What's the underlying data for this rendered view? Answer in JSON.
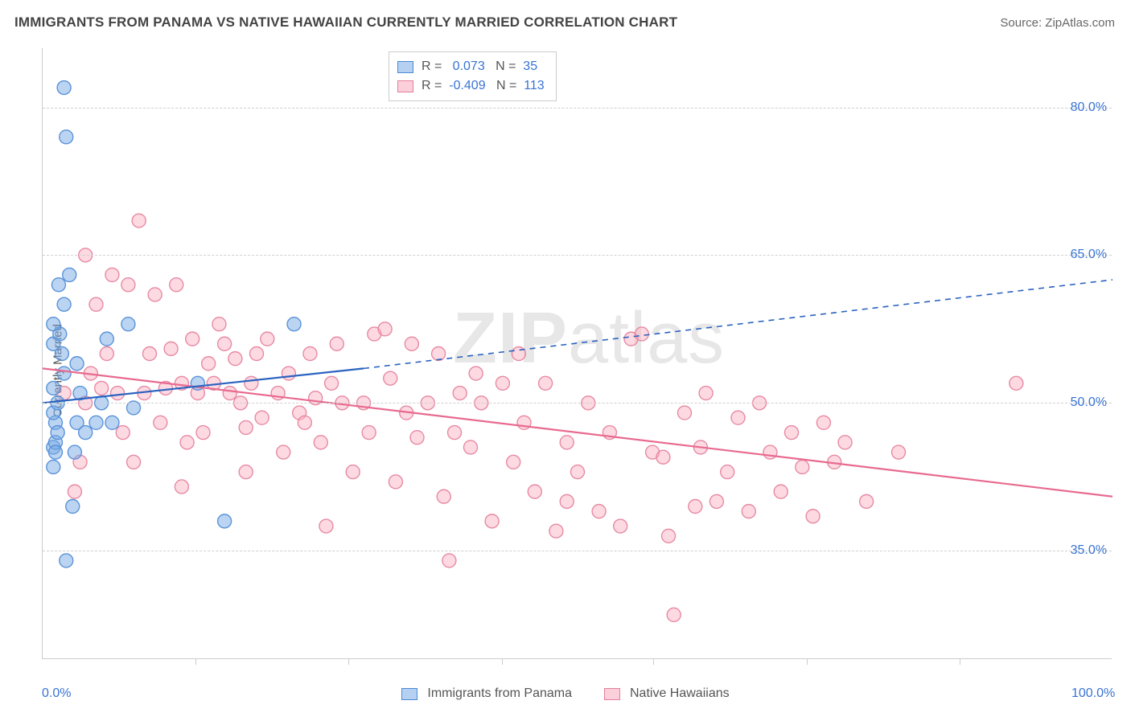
{
  "header": {
    "title": "IMMIGRANTS FROM PANAMA VS NATIVE HAWAIIAN CURRENTLY MARRIED CORRELATION CHART",
    "source_label": "Source: ",
    "source_value": "ZipAtlas.com"
  },
  "watermark": {
    "bold": "ZIP",
    "rest": "atlas"
  },
  "axes": {
    "y_label": "Currently Married",
    "x_min": 0,
    "x_max": 100,
    "y_min": 24,
    "y_max": 86,
    "x_ticks": [
      0,
      100
    ],
    "x_tick_labels": [
      "0.0%",
      "100.0%"
    ],
    "x_minor_ticks": [
      14.3,
      28.6,
      42.9,
      57.1,
      71.4,
      85.7
    ],
    "y_grid": [
      35,
      50,
      65,
      80
    ],
    "y_grid_labels": [
      "35.0%",
      "50.0%",
      "65.0%",
      "80.0%"
    ]
  },
  "colors": {
    "blue_fill": "rgba(120,170,230,0.5)",
    "blue_stroke": "#5a93d8",
    "blue_line": "#2a63c0",
    "pink_fill": "rgba(250,170,190,0.45)",
    "pink_stroke": "#e78aa3",
    "pink_line": "#e86a8f",
    "axis_tick_text": "#3973d4",
    "grid": "#d0d0d0"
  },
  "chart": {
    "type": "scatter",
    "marker_radius": 8.5,
    "marker_stroke_width": 1.4,
    "trend_line_width": 2.2
  },
  "stats_box": {
    "rows": [
      {
        "series": "blue",
        "r_label": "R =",
        "r_value": "0.073",
        "n_label": "N =",
        "n_value": "35"
      },
      {
        "series": "pink",
        "r_label": "R =",
        "r_value": "-0.409",
        "n_label": "N =",
        "n_value": "113"
      }
    ]
  },
  "legend": {
    "items": [
      {
        "series": "blue",
        "label": "Immigrants from Panama"
      },
      {
        "series": "pink",
        "label": "Native Hawaiians"
      }
    ]
  },
  "trend_lines": {
    "blue": {
      "x1": 0,
      "y1": 50.0,
      "x_solid_end": 30,
      "y_solid_end": 53.5,
      "x2": 100,
      "y2": 62.5,
      "dashed_from_solid_end": true
    },
    "pink": {
      "x1": 0,
      "y1": 53.5,
      "x2": 100,
      "y2": 40.5
    }
  },
  "series": {
    "blue": [
      [
        1.0,
        45.5
      ],
      [
        1.2,
        46.0
      ],
      [
        1.2,
        48.0
      ],
      [
        1.0,
        49.0
      ],
      [
        1.4,
        50.0
      ],
      [
        1.0,
        51.5
      ],
      [
        2.0,
        53.0
      ],
      [
        1.8,
        55.0
      ],
      [
        1.0,
        56.0
      ],
      [
        1.6,
        57.0
      ],
      [
        1.0,
        58.0
      ],
      [
        2.0,
        60.0
      ],
      [
        1.5,
        62.0
      ],
      [
        2.5,
        63.0
      ],
      [
        2.0,
        82.0
      ],
      [
        2.2,
        77.0
      ],
      [
        2.8,
        39.5
      ],
      [
        2.2,
        34.0
      ],
      [
        3.0,
        45.0
      ],
      [
        3.2,
        48.0
      ],
      [
        3.5,
        51.0
      ],
      [
        4.0,
        47.0
      ],
      [
        5.0,
        48.0
      ],
      [
        5.5,
        50.0
      ],
      [
        6.0,
        56.5
      ],
      [
        6.5,
        48.0
      ],
      [
        8.0,
        58.0
      ],
      [
        8.5,
        49.5
      ],
      [
        3.2,
        54.0
      ],
      [
        1.0,
        43.5
      ],
      [
        14.5,
        52.0
      ],
      [
        23.5,
        58.0
      ],
      [
        17.0,
        38.0
      ],
      [
        1.2,
        45.0
      ],
      [
        1.4,
        47.0
      ]
    ],
    "pink": [
      [
        2.0,
        51.0
      ],
      [
        3.5,
        44.0
      ],
      [
        4.0,
        65.0
      ],
      [
        4.5,
        53.0
      ],
      [
        5.0,
        60.0
      ],
      [
        5.5,
        51.5
      ],
      [
        6.0,
        55.0
      ],
      [
        6.5,
        63.0
      ],
      [
        7.0,
        51.0
      ],
      [
        7.5,
        47.0
      ],
      [
        8.0,
        62.0
      ],
      [
        8.5,
        44.0
      ],
      [
        9.0,
        68.5
      ],
      [
        9.5,
        51.0
      ],
      [
        10.0,
        55.0
      ],
      [
        10.5,
        61.0
      ],
      [
        11.0,
        48.0
      ],
      [
        11.5,
        51.5
      ],
      [
        12.0,
        55.5
      ],
      [
        12.5,
        62.0
      ],
      [
        13.0,
        52.0
      ],
      [
        13.5,
        46.0
      ],
      [
        14.0,
        56.5
      ],
      [
        14.5,
        51.0
      ],
      [
        15.0,
        47.0
      ],
      [
        15.5,
        54.0
      ],
      [
        16.0,
        52.0
      ],
      [
        16.5,
        58.0
      ],
      [
        17.0,
        56.0
      ],
      [
        17.5,
        51.0
      ],
      [
        18.0,
        54.5
      ],
      [
        18.5,
        50.0
      ],
      [
        19.0,
        47.5
      ],
      [
        19.5,
        52.0
      ],
      [
        20.0,
        55.0
      ],
      [
        20.5,
        48.5
      ],
      [
        21.0,
        56.5
      ],
      [
        22.0,
        51.0
      ],
      [
        22.5,
        45.0
      ],
      [
        23.0,
        53.0
      ],
      [
        24.0,
        49.0
      ],
      [
        24.5,
        48.0
      ],
      [
        25.0,
        55.0
      ],
      [
        25.5,
        50.5
      ],
      [
        26.0,
        46.0
      ],
      [
        27.0,
        52.0
      ],
      [
        27.5,
        56.0
      ],
      [
        28.0,
        50.0
      ],
      [
        29.0,
        43.0
      ],
      [
        30.0,
        50.0
      ],
      [
        30.5,
        47.0
      ],
      [
        31.0,
        57.0
      ],
      [
        32.0,
        57.5
      ],
      [
        32.5,
        52.5
      ],
      [
        33.0,
        42.0
      ],
      [
        34.0,
        49.0
      ],
      [
        34.5,
        56.0
      ],
      [
        35.0,
        46.5
      ],
      [
        36.0,
        50.0
      ],
      [
        37.0,
        55.0
      ],
      [
        37.5,
        40.5
      ],
      [
        38.0,
        34.0
      ],
      [
        38.5,
        47.0
      ],
      [
        39.0,
        51.0
      ],
      [
        40.0,
        45.5
      ],
      [
        41.0,
        50.0
      ],
      [
        42.0,
        38.0
      ],
      [
        43.0,
        52.0
      ],
      [
        44.0,
        44.0
      ],
      [
        45.0,
        48.0
      ],
      [
        46.0,
        41.0
      ],
      [
        47.0,
        52.0
      ],
      [
        48.0,
        37.0
      ],
      [
        49.0,
        40.0
      ],
      [
        50.0,
        43.0
      ],
      [
        51.0,
        50.0
      ],
      [
        52.0,
        39.0
      ],
      [
        53.0,
        47.0
      ],
      [
        54.0,
        37.5
      ],
      [
        55.0,
        56.5
      ],
      [
        56.0,
        57.0
      ],
      [
        57.0,
        45.0
      ],
      [
        58.0,
        44.5
      ],
      [
        59.0,
        28.5
      ],
      [
        60.0,
        49.0
      ],
      [
        61.0,
        39.5
      ],
      [
        62.0,
        51.0
      ],
      [
        61.5,
        45.5
      ],
      [
        63.0,
        40.0
      ],
      [
        64.0,
        43.0
      ],
      [
        65.0,
        48.5
      ],
      [
        66.0,
        39.0
      ],
      [
        67.0,
        50.0
      ],
      [
        68.0,
        45.0
      ],
      [
        69.0,
        41.0
      ],
      [
        70.0,
        47.0
      ],
      [
        71.0,
        43.5
      ],
      [
        72.0,
        38.5
      ],
      [
        73.0,
        48.0
      ],
      [
        74.0,
        44.0
      ],
      [
        75.0,
        46.0
      ],
      [
        77.0,
        40.0
      ],
      [
        80.0,
        45.0
      ],
      [
        91.0,
        52.0
      ],
      [
        3.0,
        41.0
      ],
      [
        4.0,
        50.0
      ],
      [
        13.0,
        41.5
      ],
      [
        19.0,
        43.0
      ],
      [
        26.5,
        37.5
      ],
      [
        40.5,
        53.0
      ],
      [
        44.5,
        55.0
      ],
      [
        49.0,
        46.0
      ],
      [
        58.5,
        36.5
      ]
    ]
  }
}
